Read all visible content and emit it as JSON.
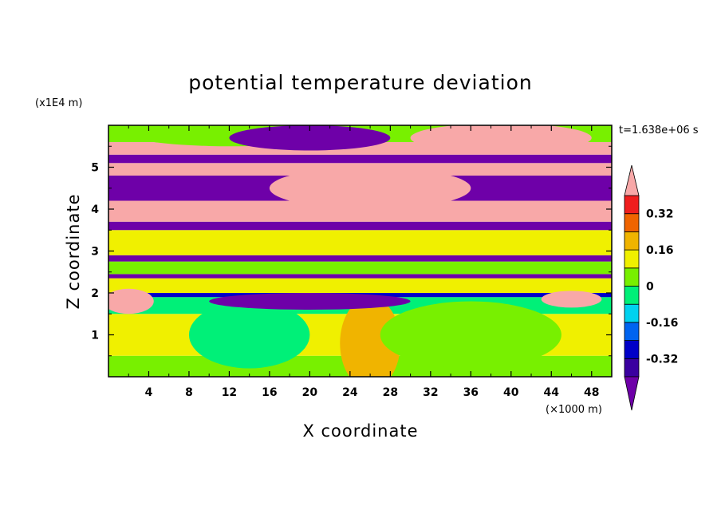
{
  "chart_data": {
    "type": "heatmap",
    "title": "potential temperature deviation",
    "xlabel": "X coordinate",
    "ylabel": "Z coordinate",
    "x_unit": "(×1000 m)",
    "y_unit": "(x1E4 m)",
    "time_label": "t=1.638e+06 s",
    "xlim": [
      0,
      50
    ],
    "ylim": [
      0,
      6
    ],
    "x_ticks": [
      4,
      8,
      12,
      16,
      20,
      24,
      28,
      32,
      36,
      40,
      44,
      48
    ],
    "y_ticks": [
      1,
      2,
      3,
      4,
      5
    ],
    "colorbar": {
      "levels": [
        -0.4,
        -0.32,
        -0.24,
        -0.16,
        -0.08,
        0,
        0.08,
        0.16,
        0.24,
        0.32,
        0.4
      ],
      "labels": [
        "0.32",
        "0.16",
        "0",
        "-0.16",
        "-0.32"
      ],
      "label_values": [
        0.32,
        0.16,
        0,
        -0.16,
        -0.32
      ],
      "colors": [
        "#6e00a8",
        "#3a00a0",
        "#0000c8",
        "#0064f0",
        "#00d2f0",
        "#00f078",
        "#78f000",
        "#f0f000",
        "#f0b400",
        "#f06400",
        "#f01e1e",
        "#f8a8a8"
      ],
      "extend": "both"
    },
    "bands": [
      {
        "z0": 0.0,
        "z1": 0.5,
        "level": "0"
      },
      {
        "z0": 0.5,
        "z1": 1.5,
        "level": "0.08"
      },
      {
        "z0": 1.5,
        "z1": 1.9,
        "level": "-0.08"
      },
      {
        "z0": 1.9,
        "z1": 2.0,
        "level": "-0.32"
      },
      {
        "z0": 2.0,
        "z1": 2.35,
        "level": "0.08"
      },
      {
        "z0": 2.35,
        "z1": 2.45,
        "level": "-0.4"
      },
      {
        "z0": 2.45,
        "z1": 2.75,
        "level": "0"
      },
      {
        "z0": 2.75,
        "z1": 2.9,
        "level": "-0.4"
      },
      {
        "z0": 2.9,
        "z1": 3.5,
        "level": "0.08"
      },
      {
        "z0": 3.5,
        "z1": 3.7,
        "level": "-0.4"
      },
      {
        "z0": 3.7,
        "z1": 4.2,
        "level": "0.4"
      },
      {
        "z0": 4.2,
        "z1": 4.8,
        "level": "-0.4"
      },
      {
        "z0": 4.8,
        "z1": 5.1,
        "level": "0.4"
      },
      {
        "z0": 5.1,
        "z1": 5.3,
        "level": "-0.4"
      },
      {
        "z0": 5.3,
        "z1": 5.6,
        "level": "0.4"
      },
      {
        "z0": 5.6,
        "z1": 6.0,
        "level": "0"
      }
    ],
    "features": [
      {
        "type": "blob",
        "x": 26,
        "z": 0.3,
        "rx": 1.2,
        "rz": 0.5,
        "level": "0.32"
      },
      {
        "type": "blob",
        "x": 26,
        "z": 0.8,
        "rx": 3.0,
        "rz": 1.1,
        "level": "0.16"
      },
      {
        "type": "blob",
        "x": 14,
        "z": 1.0,
        "rx": 6.0,
        "rz": 0.8,
        "level": "-0.08"
      },
      {
        "type": "blob",
        "x": 36,
        "z": 1.0,
        "rx": 9.0,
        "rz": 0.8,
        "level": "0"
      },
      {
        "type": "blob",
        "x": 12,
        "z": 5.8,
        "rx": 10,
        "rz": 0.3,
        "level": "0"
      },
      {
        "type": "blob",
        "x": 20,
        "z": 5.7,
        "rx": 8.0,
        "rz": 0.3,
        "level": "-0.4"
      },
      {
        "type": "blob",
        "x": 39,
        "z": 5.7,
        "rx": 9.0,
        "rz": 0.35,
        "level": "0.4"
      },
      {
        "type": "blob",
        "x": 26,
        "z": 4.5,
        "rx": 10,
        "rz": 0.5,
        "level": "0.4"
      },
      {
        "type": "blob",
        "x": 20,
        "z": 1.8,
        "rx": 10,
        "rz": 0.2,
        "level": "-0.4"
      },
      {
        "type": "blob",
        "x": 2,
        "z": 1.8,
        "rx": 2.5,
        "rz": 0.3,
        "level": "0.4"
      },
      {
        "type": "blob",
        "x": 46,
        "z": 1.85,
        "rx": 3.0,
        "rz": 0.2,
        "level": "0.4"
      }
    ]
  }
}
